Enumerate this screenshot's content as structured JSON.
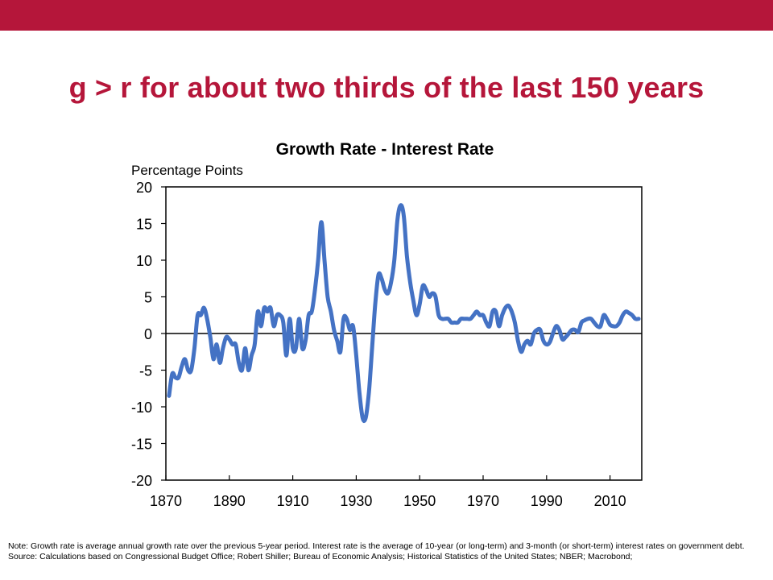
{
  "slide": {
    "title": "g > r for about two thirds of the last 150 years",
    "note": "Note: Growth rate is average annual growth rate over the previous 5-year period. Interest rate is the average of 10-year (or long-term) and 3-month (or short-term) interest rates on government debt.",
    "source": "Source: Calculations based on Congressional Budget Office; Robert Shiller; Bureau of Economic Analysis; Historical Statistics of the United States; NBER; Macrobond;"
  },
  "colors": {
    "brand": "#b5163a",
    "series": "#4472c4"
  },
  "chart_data": {
    "type": "line",
    "title": "Growth Rate - Interest Rate",
    "ylabel": "Percentage Points",
    "xlabel": "",
    "xlim": [
      1870,
      2020
    ],
    "ylim": [
      -20,
      20
    ],
    "xticks": [
      1870,
      1890,
      1910,
      1930,
      1950,
      1970,
      1990,
      2010
    ],
    "yticks": [
      20,
      15,
      10,
      5,
      0,
      -5,
      -10,
      -15,
      -20
    ],
    "grid": false,
    "zero_line": true,
    "series": [
      {
        "values": [
          [
            1871,
            -8.5
          ],
          [
            1872,
            -5.5
          ],
          [
            1873,
            -6.0
          ],
          [
            1874,
            -6.0
          ],
          [
            1875,
            -4.5
          ],
          [
            1876,
            -3.5
          ],
          [
            1877,
            -5.0
          ],
          [
            1878,
            -5.0
          ],
          [
            1879,
            -2.0
          ],
          [
            1880,
            2.5
          ],
          [
            1881,
            2.5
          ],
          [
            1882,
            3.5
          ],
          [
            1883,
            2.0
          ],
          [
            1884,
            -0.5
          ],
          [
            1885,
            -3.5
          ],
          [
            1886,
            -1.5
          ],
          [
            1887,
            -4.0
          ],
          [
            1888,
            -2.0
          ],
          [
            1889,
            -0.5
          ],
          [
            1890,
            -0.8
          ],
          [
            1891,
            -1.5
          ],
          [
            1892,
            -1.5
          ],
          [
            1893,
            -4.0
          ],
          [
            1894,
            -5.0
          ],
          [
            1895,
            -2.0
          ],
          [
            1896,
            -5.0
          ],
          [
            1897,
            -3.0
          ],
          [
            1898,
            -1.5
          ],
          [
            1899,
            3.0
          ],
          [
            1900,
            1.0
          ],
          [
            1901,
            3.5
          ],
          [
            1902,
            3.0
          ],
          [
            1903,
            3.5
          ],
          [
            1904,
            1.0
          ],
          [
            1905,
            2.5
          ],
          [
            1906,
            2.5
          ],
          [
            1907,
            1.5
          ],
          [
            1908,
            -3.0
          ],
          [
            1909,
            2.0
          ],
          [
            1910,
            -2.0
          ],
          [
            1911,
            -2.0
          ],
          [
            1912,
            2.0
          ],
          [
            1913,
            -2.0
          ],
          [
            1914,
            -1.0
          ],
          [
            1915,
            2.5
          ],
          [
            1916,
            3.0
          ],
          [
            1917,
            6.0
          ],
          [
            1918,
            10.0
          ],
          [
            1919,
            15.2
          ],
          [
            1920,
            10.0
          ],
          [
            1921,
            5.0
          ],
          [
            1922,
            3.0
          ],
          [
            1923,
            0.5
          ],
          [
            1924,
            -1.0
          ],
          [
            1925,
            -2.5
          ],
          [
            1926,
            2.0
          ],
          [
            1927,
            2.0
          ],
          [
            1928,
            0.5
          ],
          [
            1929,
            1.0
          ],
          [
            1930,
            -3.0
          ],
          [
            1931,
            -8.0
          ],
          [
            1932,
            -11.5
          ],
          [
            1933,
            -11.5
          ],
          [
            1934,
            -8.0
          ],
          [
            1935,
            -2.0
          ],
          [
            1936,
            4.0
          ],
          [
            1937,
            8.0
          ],
          [
            1938,
            7.5
          ],
          [
            1939,
            6.0
          ],
          [
            1940,
            5.5
          ],
          [
            1941,
            7.0
          ],
          [
            1942,
            10.0
          ],
          [
            1943,
            15.5
          ],
          [
            1944,
            17.5
          ],
          [
            1945,
            16.0
          ],
          [
            1946,
            10.5
          ],
          [
            1947,
            7.0
          ],
          [
            1948,
            4.5
          ],
          [
            1949,
            2.5
          ],
          [
            1950,
            4.0
          ],
          [
            1951,
            6.5
          ],
          [
            1952,
            6.0
          ],
          [
            1953,
            5.0
          ],
          [
            1954,
            5.5
          ],
          [
            1955,
            5.0
          ],
          [
            1956,
            2.5
          ],
          [
            1957,
            2.0
          ],
          [
            1958,
            2.0
          ],
          [
            1959,
            2.0
          ],
          [
            1960,
            1.5
          ],
          [
            1961,
            1.5
          ],
          [
            1962,
            1.5
          ],
          [
            1963,
            2.0
          ],
          [
            1964,
            2.0
          ],
          [
            1965,
            2.0
          ],
          [
            1966,
            2.0
          ],
          [
            1967,
            2.5
          ],
          [
            1968,
            3.0
          ],
          [
            1969,
            2.5
          ],
          [
            1970,
            2.5
          ],
          [
            1971,
            1.5
          ],
          [
            1972,
            1.0
          ],
          [
            1973,
            3.0
          ],
          [
            1974,
            3.0
          ],
          [
            1975,
            1.0
          ],
          [
            1976,
            2.5
          ],
          [
            1977,
            3.5
          ],
          [
            1978,
            3.8
          ],
          [
            1979,
            3.0
          ],
          [
            1980,
            1.5
          ],
          [
            1981,
            -1.0
          ],
          [
            1982,
            -2.5
          ],
          [
            1983,
            -1.5
          ],
          [
            1984,
            -1.0
          ],
          [
            1985,
            -1.5
          ],
          [
            1986,
            0.0
          ],
          [
            1987,
            0.5
          ],
          [
            1988,
            0.5
          ],
          [
            1989,
            -1.0
          ],
          [
            1990,
            -1.5
          ],
          [
            1991,
            -1.2
          ],
          [
            1992,
            0.0
          ],
          [
            1993,
            1.0
          ],
          [
            1994,
            0.5
          ],
          [
            1995,
            -0.8
          ],
          [
            1996,
            -0.5
          ],
          [
            1997,
            0.0
          ],
          [
            1998,
            0.5
          ],
          [
            1999,
            0.5
          ],
          [
            2000,
            0.2
          ],
          [
            2001,
            1.5
          ],
          [
            2002,
            1.8
          ],
          [
            2003,
            2.0
          ],
          [
            2004,
            2.0
          ],
          [
            2005,
            1.5
          ],
          [
            2006,
            1.0
          ],
          [
            2007,
            1.0
          ],
          [
            2008,
            2.5
          ],
          [
            2009,
            2.0
          ],
          [
            2010,
            1.2
          ],
          [
            2011,
            1.0
          ],
          [
            2012,
            1.0
          ],
          [
            2013,
            1.5
          ],
          [
            2014,
            2.5
          ],
          [
            2015,
            3.0
          ],
          [
            2016,
            2.8
          ],
          [
            2017,
            2.5
          ],
          [
            2018,
            2.0
          ],
          [
            2019,
            2.0
          ]
        ]
      }
    ]
  }
}
